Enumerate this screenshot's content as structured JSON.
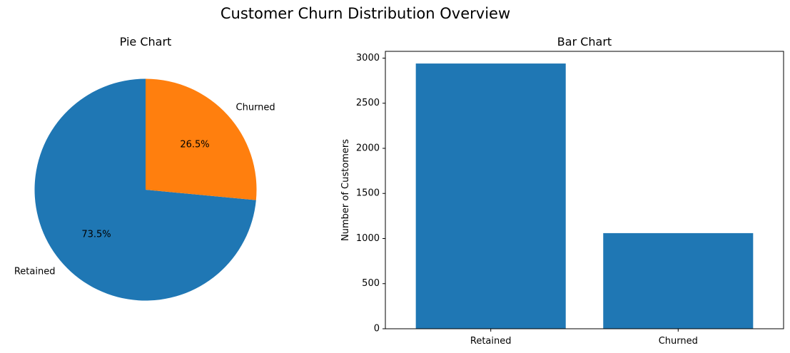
{
  "figure": {
    "suptitle": "Customer Churn Distribution Overview"
  },
  "chart_data": [
    {
      "type": "pie",
      "title": "Pie Chart",
      "labels": [
        "Retained",
        "Churned"
      ],
      "values": [
        73.5,
        26.5
      ],
      "value_labels": [
        "73.5%",
        "26.5%"
      ],
      "colors": [
        "#1f77b4",
        "#ff7f0e"
      ],
      "start_angle_deg": 90,
      "direction": "counterclockwise"
    },
    {
      "type": "bar",
      "title": "Bar Chart",
      "categories": [
        "Retained",
        "Churned"
      ],
      "values": [
        2940,
        1060
      ],
      "xlabel": "",
      "ylabel": "Number of Customers",
      "ylim": [
        0,
        3075
      ],
      "yticks": [
        0,
        500,
        1000,
        1500,
        2000,
        2500,
        3000
      ],
      "ytick_labels": [
        "0",
        "500",
        "1000",
        "1500",
        "2000",
        "2500",
        "3000"
      ],
      "bar_color": "#1f77b4",
      "grid": false
    }
  ]
}
